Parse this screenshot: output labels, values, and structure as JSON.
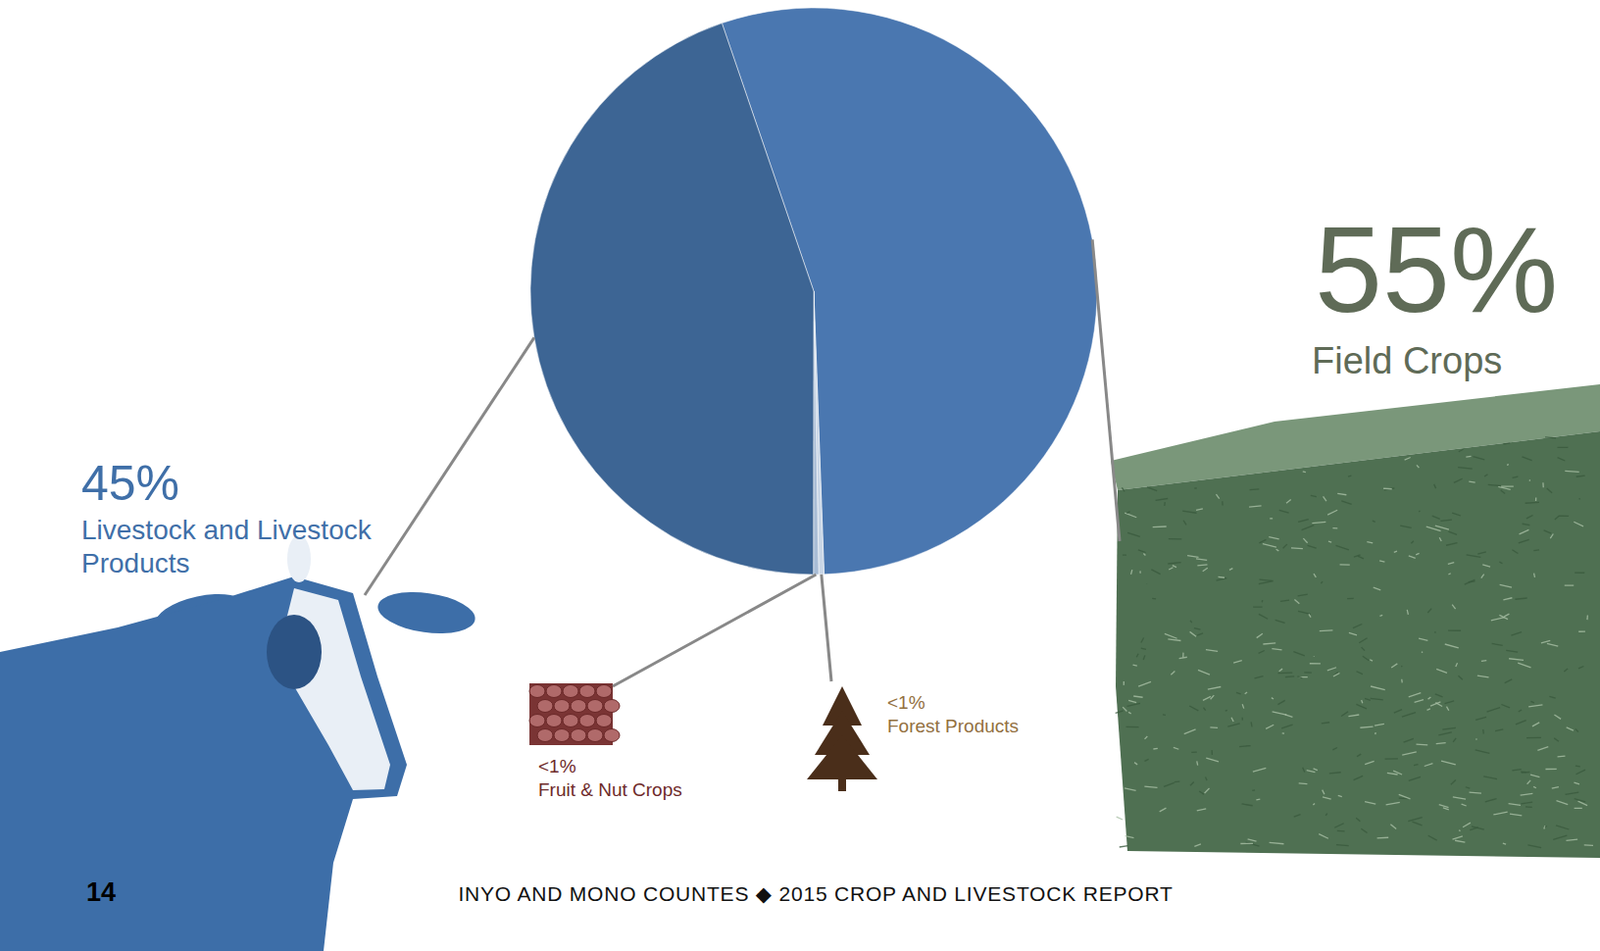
{
  "chart_data": {
    "type": "pie",
    "categories": [
      "Field Crops",
      "Forest Products",
      "Fruit & Nut Crops",
      "Livestock and Livestock Products"
    ],
    "values": [
      55,
      0.3,
      0.3,
      45
    ],
    "value_labels": [
      "55%",
      "<1%",
      "<1%",
      "45%"
    ],
    "colors": [
      "#4a77b0",
      "#c9d6e6",
      "#a9bdd6",
      "#3d6594"
    ],
    "data_labels": true
  },
  "footer": {
    "page_number": "14",
    "title": "INYO AND MONO COUNTES ◆ 2015 CROP AND LIVESTOCK REPORT"
  }
}
